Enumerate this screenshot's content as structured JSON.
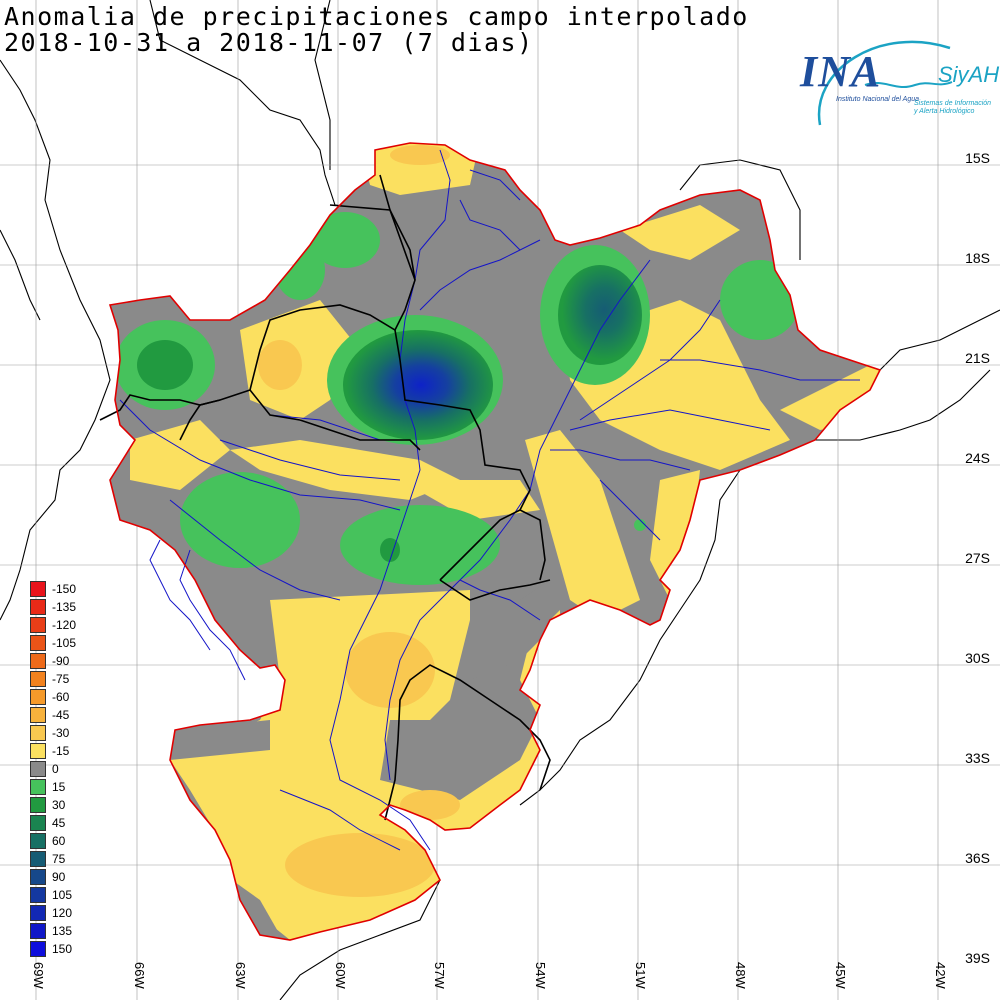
{
  "title": {
    "line1": "Anomalia de precipitaciones campo interpolado",
    "line2": "2018-10-31 a 2018-11-07 (7 dias)"
  },
  "logo": {
    "brand": "INA",
    "system": "SiyAH",
    "institute": "Instituto Nacional del Agua",
    "system_line1": "Sistemas de Información",
    "system_line2": "y Alerta Hidrológico"
  },
  "legend": [
    {
      "label": "-150",
      "color": "#e8141c"
    },
    {
      "label": "-135",
      "color": "#e82a18"
    },
    {
      "label": "-120",
      "color": "#e83e18"
    },
    {
      "label": "-105",
      "color": "#ea5418"
    },
    {
      "label": "-90",
      "color": "#ee6a1a"
    },
    {
      "label": "-75",
      "color": "#f2821e"
    },
    {
      "label": "-60",
      "color": "#f59a2a"
    },
    {
      "label": "-45",
      "color": "#f7b23c"
    },
    {
      "label": "-30",
      "color": "#f9c850"
    },
    {
      "label": "-15",
      "color": "#fbe060"
    },
    {
      "label": "0",
      "color": "#8a8a8a"
    },
    {
      "label": "15",
      "color": "#46c25c"
    },
    {
      "label": "30",
      "color": "#219a40"
    },
    {
      "label": "45",
      "color": "#1a8450"
    },
    {
      "label": "60",
      "color": "#177064"
    },
    {
      "label": "75",
      "color": "#165c74"
    },
    {
      "label": "90",
      "color": "#16488a"
    },
    {
      "label": "105",
      "color": "#1438a0"
    },
    {
      "label": "120",
      "color": "#1228b4"
    },
    {
      "label": "135",
      "color": "#1018c8"
    },
    {
      "label": "150",
      "color": "#0e0edc"
    }
  ],
  "lat_labels": [
    "15S",
    "18S",
    "21S",
    "24S",
    "27S",
    "30S",
    "33S",
    "36S",
    "39S"
  ],
  "lon_labels": [
    "69W",
    "66W",
    "63W",
    "60W",
    "57W",
    "54W",
    "51W",
    "48W",
    "45W",
    "42W"
  ],
  "colors": {
    "neutral": "#8a8a8a",
    "light_deficit": "#fbe060",
    "moderate_deficit": "#f9c850",
    "light_excess": "#46c25c",
    "excess": "#219a40",
    "strong_excess": "#1438a0",
    "basin_outline": "#e00000",
    "rivers": "#1414c8"
  }
}
